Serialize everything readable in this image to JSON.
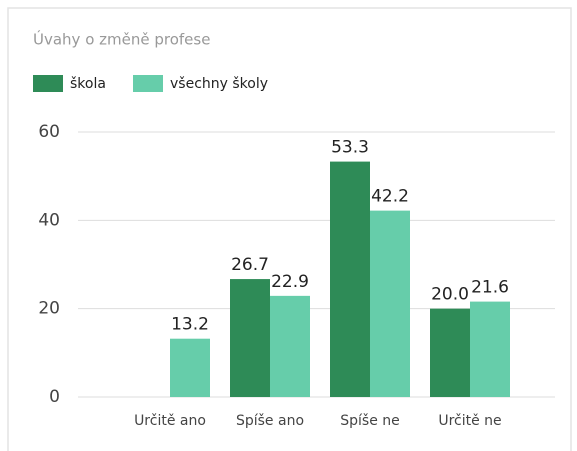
{
  "chart_data": {
    "type": "bar",
    "title": "Úvahy o změně profese",
    "categories": [
      "Určitě ano",
      "Spíše ano",
      "Spíše ne",
      "Určitě ne"
    ],
    "series": [
      {
        "name": "škola",
        "color": "#2e8b57",
        "values": [
          null,
          26.7,
          53.3,
          20.0
        ],
        "value_labels": [
          null,
          "26.7",
          "53.3",
          "20.0"
        ]
      },
      {
        "name": "všechny školy",
        "color": "#66cdaa",
        "values": [
          13.2,
          22.9,
          42.2,
          21.6
        ]
      }
    ],
    "ylim": [
      0,
      60
    ],
    "yticks": [
      0,
      20,
      40,
      60
    ],
    "grid": true,
    "legend": "top-left"
  }
}
